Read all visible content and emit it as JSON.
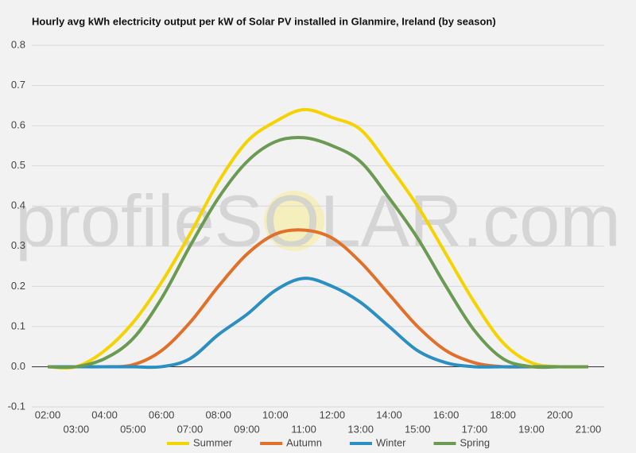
{
  "chart_data": {
    "type": "line",
    "title": "Hourly avg kWh electricity output per kW of Solar PV installed in Glanmire, Ireland (by season)",
    "watermark": "profileSOLAR.com",
    "categories": [
      "02:00",
      "03:00",
      "04:00",
      "05:00",
      "06:00",
      "07:00",
      "08:00",
      "09:00",
      "10:00",
      "11:00",
      "12:00",
      "13:00",
      "14:00",
      "15:00",
      "16:00",
      "17:00",
      "18:00",
      "19:00",
      "20:00",
      "21:00"
    ],
    "series": [
      {
        "name": "Summer",
        "color": "#f5d300",
        "values": [
          0,
          0,
          0.04,
          0.11,
          0.21,
          0.33,
          0.46,
          0.56,
          0.61,
          0.64,
          0.62,
          0.59,
          0.5,
          0.4,
          0.28,
          0.16,
          0.06,
          0.01,
          0,
          0
        ]
      },
      {
        "name": "Autumn",
        "color": "#e0702a",
        "values": [
          0,
          0,
          0,
          0.005,
          0.04,
          0.11,
          0.2,
          0.28,
          0.33,
          0.34,
          0.32,
          0.26,
          0.18,
          0.1,
          0.04,
          0.01,
          0,
          0,
          0,
          0
        ]
      },
      {
        "name": "Winter",
        "color": "#2b8fc2",
        "values": [
          0,
          0,
          0,
          0,
          0,
          0.02,
          0.08,
          0.13,
          0.19,
          0.22,
          0.2,
          0.16,
          0.1,
          0.04,
          0.01,
          0,
          0,
          0,
          0,
          0
        ]
      },
      {
        "name": "Spring",
        "color": "#6b9a52",
        "values": [
          0,
          0,
          0.02,
          0.07,
          0.17,
          0.3,
          0.42,
          0.51,
          0.56,
          0.57,
          0.55,
          0.51,
          0.42,
          0.32,
          0.2,
          0.09,
          0.02,
          0,
          0,
          0
        ]
      }
    ],
    "ylim": [
      -0.1,
      0.8
    ],
    "yticks": [
      -0.1,
      {
        "value": 0,
        "label": "0.0"
      },
      0.1,
      0.2,
      0.3,
      0.4,
      0.5,
      0.6,
      0.7,
      0.8
    ],
    "grid": true
  }
}
